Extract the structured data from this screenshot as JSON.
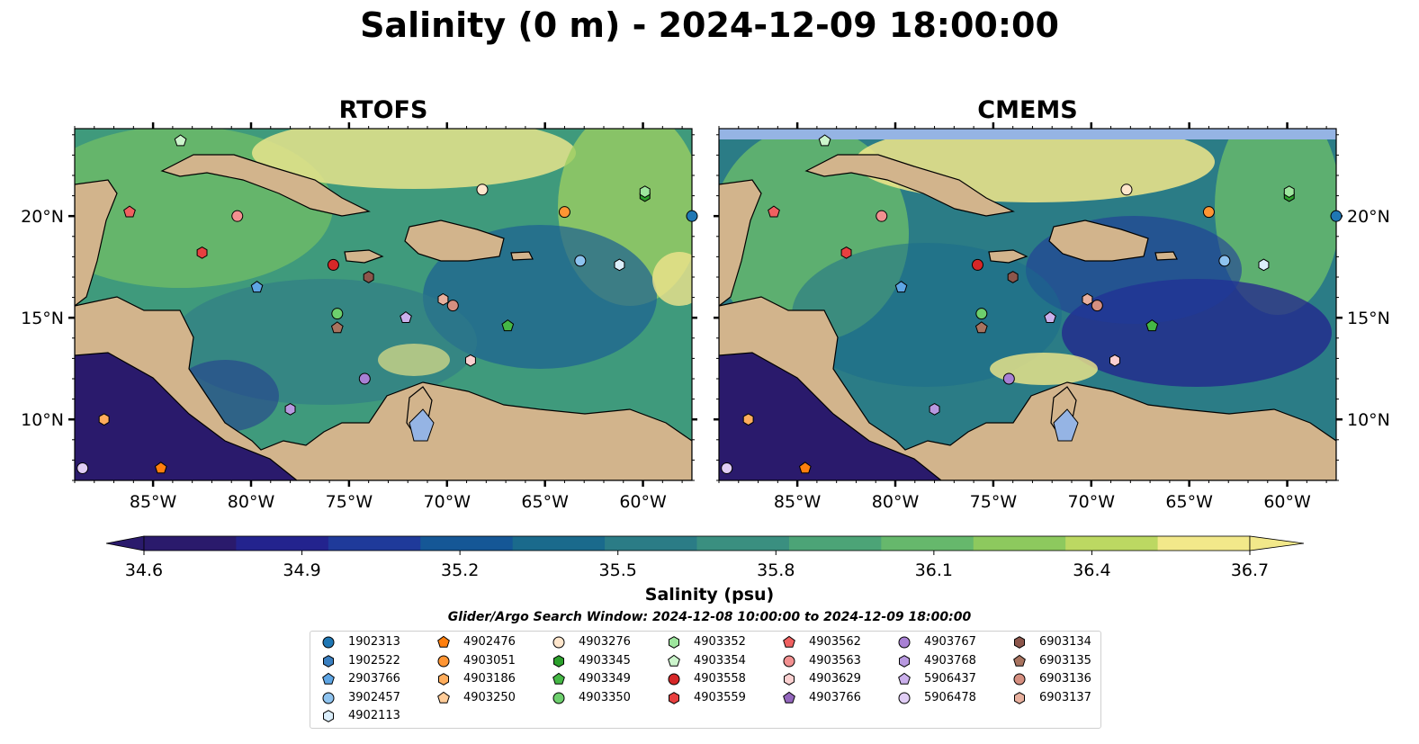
{
  "title": "Salinity (0 m) - 2024-12-09 18:00:00",
  "panels": [
    {
      "title": "RTOFS"
    },
    {
      "title": "CMEMS"
    }
  ],
  "map_extent": {
    "lon": [
      -89,
      -57.5
    ],
    "lat": [
      7,
      24.3
    ]
  },
  "lon_ticks": [
    {
      "lon": -85,
      "label": "85°W"
    },
    {
      "lon": -80,
      "label": "80°W"
    },
    {
      "lon": -75,
      "label": "75°W"
    },
    {
      "lon": -70,
      "label": "70°W"
    },
    {
      "lon": -65,
      "label": "65°W"
    },
    {
      "lon": -60,
      "label": "60°W"
    }
  ],
  "lat_ticks": [
    {
      "lat": 20,
      "label": "20°N"
    },
    {
      "lat": 15,
      "label": "15°N"
    },
    {
      "lat": 10,
      "label": "10°N"
    }
  ],
  "colorbar": {
    "label": "Salinity (psu)",
    "range": [
      34.6,
      36.7
    ],
    "ticks": [
      "34.6",
      "34.9",
      "35.2",
      "35.5",
      "35.8",
      "36.1",
      "36.4",
      "36.7"
    ],
    "colormap": "haline",
    "colors": [
      "#2a1a6c",
      "#23238e",
      "#1f3a9a",
      "#155796",
      "#1a6a8c",
      "#2b7c86",
      "#3a8f80",
      "#4ca477",
      "#66b86c",
      "#8dc95e",
      "#bcd862",
      "#f2e88a"
    ],
    "extend": "both"
  },
  "land_color": "#d2b48c",
  "lake_color": "#95b4e4",
  "search_window": "Glider/Argo Search Window: 2024-12-08 10:00:00 to 2024-12-09 18:00:00",
  "floats": [
    {
      "id": "1902313",
      "color": "#1f77b4",
      "marker": "circle",
      "lon": -57.5,
      "lat": 20.0
    },
    {
      "id": "1902522",
      "color": "#3a7fc0",
      "marker": "hexagon",
      "lon": null,
      "lat": null
    },
    {
      "id": "2903766",
      "color": "#5ea5e4",
      "marker": "pentagon",
      "lon": -79.7,
      "lat": 16.5
    },
    {
      "id": "3902457",
      "color": "#8ec3ef",
      "marker": "circle",
      "lon": -63.2,
      "lat": 17.8
    },
    {
      "id": "4902113",
      "color": "#dbeefb",
      "marker": "hexagon",
      "lon": -61.2,
      "lat": 17.6
    },
    {
      "id": "4902476",
      "color": "#ff7f0e",
      "marker": "pentagon",
      "lon": -84.6,
      "lat": 7.6
    },
    {
      "id": "4903051",
      "color": "#ff9533",
      "marker": "circle",
      "lon": -64.0,
      "lat": 20.2
    },
    {
      "id": "4903186",
      "color": "#ffad5c",
      "marker": "hexagon",
      "lon": -87.5,
      "lat": 10.0
    },
    {
      "id": "4903250",
      "color": "#ffcc99",
      "marker": "pentagon",
      "lon": null,
      "lat": null
    },
    {
      "id": "4903276",
      "color": "#ffe6cc",
      "marker": "circle",
      "lon": -68.2,
      "lat": 21.3
    },
    {
      "id": "4903345",
      "color": "#2ca02c",
      "marker": "hexagon",
      "lon": -59.9,
      "lat": 21.0
    },
    {
      "id": "4903349",
      "color": "#45b845",
      "marker": "pentagon",
      "lon": -66.9,
      "lat": 14.6
    },
    {
      "id": "4903350",
      "color": "#6dcf6d",
      "marker": "circle",
      "lon": -75.6,
      "lat": 15.2
    },
    {
      "id": "4903352",
      "color": "#9ee69e",
      "marker": "hexagon",
      "lon": -59.9,
      "lat": 21.2
    },
    {
      "id": "4903354",
      "color": "#ccf5cc",
      "marker": "pentagon",
      "lon": -83.6,
      "lat": 23.7
    },
    {
      "id": "4903558",
      "color": "#d62728",
      "marker": "circle",
      "lon": -75.8,
      "lat": 17.6
    },
    {
      "id": "4903559",
      "color": "#e84040",
      "marker": "hexagon",
      "lon": -82.5,
      "lat": 18.2
    },
    {
      "id": "4903562",
      "color": "#f06060",
      "marker": "pentagon",
      "lon": -86.2,
      "lat": 20.2
    },
    {
      "id": "4903563",
      "color": "#f29090",
      "marker": "circle",
      "lon": -80.7,
      "lat": 20.0
    },
    {
      "id": "4903629",
      "color": "#fbd0d0",
      "marker": "hexagon",
      "lon": -68.8,
      "lat": 12.9
    },
    {
      "id": "4903766",
      "color": "#9467bd",
      "marker": "pentagon",
      "lon": null,
      "lat": null
    },
    {
      "id": "4903767",
      "color": "#a880d4",
      "marker": "circle",
      "lon": -74.2,
      "lat": 12.0
    },
    {
      "id": "4903768",
      "color": "#b899e0",
      "marker": "hexagon",
      "lon": -78.0,
      "lat": 10.5
    },
    {
      "id": "5906437",
      "color": "#cbb0ec",
      "marker": "pentagon",
      "lon": -72.1,
      "lat": 15.0
    },
    {
      "id": "5906478",
      "color": "#e0cdf5",
      "marker": "circle",
      "lon": -88.6,
      "lat": 7.6
    },
    {
      "id": "6903134",
      "color": "#8c564b",
      "marker": "hexagon",
      "lon": -74.0,
      "lat": 17.0
    },
    {
      "id": "6903135",
      "color": "#a8735f",
      "marker": "pentagon",
      "lon": -75.6,
      "lat": 14.5
    },
    {
      "id": "6903136",
      "color": "#d68f80",
      "marker": "circle",
      "lon": -69.7,
      "lat": 15.6
    },
    {
      "id": "6903137",
      "color": "#e8b09e",
      "marker": "hexagon",
      "lon": -70.2,
      "lat": 15.9
    }
  ]
}
